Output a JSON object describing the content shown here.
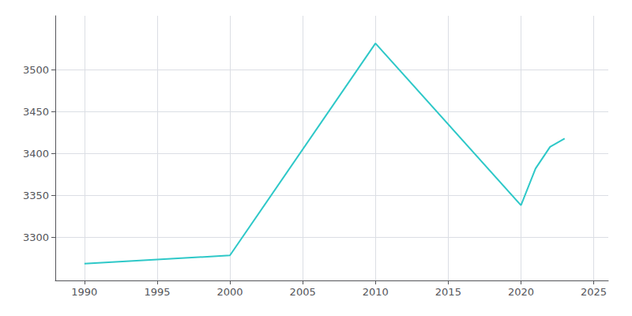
{
  "chart_data": {
    "type": "line",
    "x": [
      1990,
      2000,
      2010,
      2020,
      2021,
      2022,
      2023
    ],
    "values": [
      3268,
      3278,
      3532,
      3338,
      3382,
      3408,
      3418
    ],
    "color": "#2ec8c8",
    "xlim": [
      1988,
      2026
    ],
    "ylim": [
      3248,
      3565
    ],
    "xticks": [
      1990,
      1995,
      2000,
      2005,
      2010,
      2015,
      2020,
      2025
    ],
    "yticks": [
      3300,
      3350,
      3400,
      3450,
      3500
    ],
    "grid": true
  }
}
